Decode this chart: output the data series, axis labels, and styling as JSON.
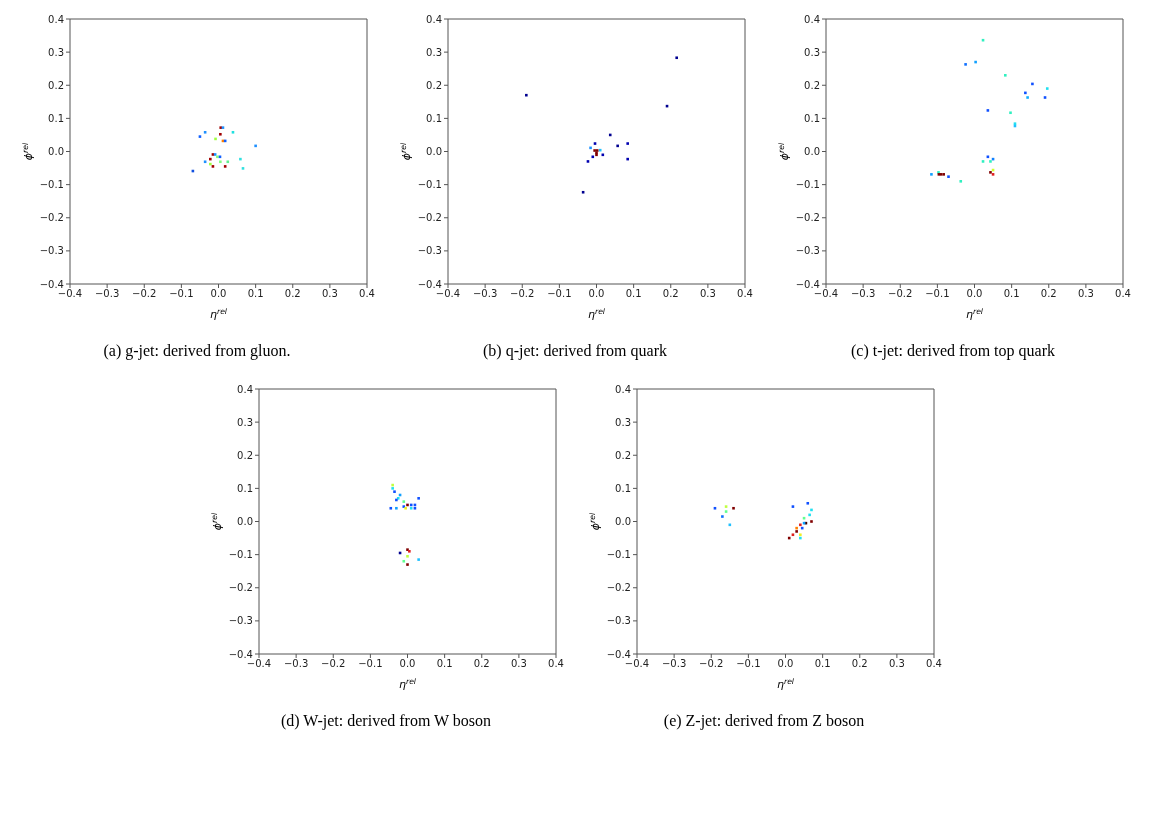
{
  "chart_data": [
    {
      "type": "scatter",
      "title": "(a) g-jet: derived from gluon.",
      "xlabel": "η$^{rel}$",
      "ylabel": "ϕ$^{rel}$",
      "marker": "square",
      "grid": false,
      "legend": false,
      "xlim": [
        -0.4,
        0.4
      ],
      "ylim": [
        -0.4,
        0.4
      ],
      "xticks": [
        {
          "value": -0.4,
          "label": "−0.4"
        },
        {
          "value": -0.3,
          "label": "−0.3"
        },
        {
          "value": -0.2,
          "label": "−0.2"
        },
        {
          "value": -0.1,
          "label": "−0.1"
        },
        {
          "value": 0,
          "label": "0.0"
        },
        0.1,
        0.2,
        0.3,
        0.4
      ],
      "yticks": [
        {
          "value": -0.4,
          "label": "−0.4"
        },
        {
          "value": -0.3,
          "label": "−0.3"
        },
        {
          "value": -0.2,
          "label": "−0.2"
        },
        {
          "value": -0.1,
          "label": "−0.1"
        },
        {
          "value": 0,
          "label": "0.0"
        },
        0.1,
        0.2,
        0.3,
        0.4
      ],
      "x": [
        0.006,
        0.012,
        -0.036,
        0.039,
        -0.05,
        0.005,
        -0.008,
        0.012,
        0.018,
        0.1,
        -0.015,
        -0.009,
        -0.003,
        0.004,
        -0.022,
        -0.036,
        0.005,
        0.025,
        0.059,
        -0.022,
        -0.015,
        0.018,
        0.066,
        -0.069
      ],
      "values": [
        0.072,
        0.072,
        0.058,
        0.058,
        0.045,
        0.052,
        0.038,
        0.032,
        0.032,
        0.017,
        -0.009,
        -0.009,
        -0.016,
        -0.016,
        -0.023,
        -0.031,
        -0.031,
        -0.031,
        -0.023,
        -0.038,
        -0.045,
        -0.045,
        -0.051,
        -0.059
      ],
      "colors": [
        "#a00000",
        "#1e90ff",
        "#1e90ff",
        "#20e0e0",
        "#1060ff",
        "#a00000",
        "#a0ff40",
        "#ff8000",
        "#1060ff",
        "#1e90ff",
        "#a00000",
        "#1e90ff",
        "#80ff80",
        "#1060ff",
        "#a00000",
        "#1e90ff",
        "#80ff80",
        "#60f090",
        "#30e0e0",
        "#a0ff40",
        "#a00000",
        "#a00000",
        "#30e0e0",
        "#1050e0"
      ]
    },
    {
      "type": "scatter",
      "title": "(b) q-jet: derived from quark",
      "xlabel": "η$^{rel}$",
      "ylabel": "ϕ$^{rel}$",
      "marker": "square",
      "grid": false,
      "legend": false,
      "xlim": [
        -0.4,
        0.4
      ],
      "ylim": [
        -0.4,
        0.4
      ],
      "xticks": [
        {
          "value": -0.4,
          "label": "−0.4"
        },
        {
          "value": -0.3,
          "label": "−0.3"
        },
        {
          "value": -0.2,
          "label": "−0.2"
        },
        {
          "value": -0.1,
          "label": "−0.1"
        },
        {
          "value": 0,
          "label": "0.0"
        },
        0.1,
        0.2,
        0.3,
        0.4
      ],
      "yticks": [
        {
          "value": -0.4,
          "label": "−0.4"
        },
        {
          "value": -0.3,
          "label": "−0.3"
        },
        {
          "value": -0.2,
          "label": "−0.2"
        },
        {
          "value": -0.1,
          "label": "−0.1"
        },
        {
          "value": 0,
          "label": "0.0"
        },
        0.1,
        0.2,
        0.3,
        0.4
      ],
      "x": [
        -0.189,
        0.216,
        0.19,
        0.037,
        -0.004,
        0.057,
        0.084,
        -0.016,
        -0.005,
        0.002,
        0.0,
        0.0,
        0.01,
        0.017,
        -0.01,
        -0.023,
        0.084,
        -0.036
      ],
      "values": [
        0.17,
        0.283,
        0.137,
        0.05,
        0.024,
        0.017,
        0.024,
        0.011,
        0.003,
        0.003,
        -0.004,
        -0.01,
        0.004,
        -0.01,
        -0.016,
        -0.03,
        -0.023,
        -0.123
      ],
      "colors": [
        "#000090",
        "#000090",
        "#000090",
        "#000090",
        "#0000b0",
        "#000090",
        "#0000b0",
        "#1e90ff",
        "#800000",
        "#800000",
        "#800000",
        "#800000",
        "#20c0ff",
        "#0000b0",
        "#0000b0",
        "#0000b0",
        "#0000b0",
        "#000090"
      ]
    },
    {
      "type": "scatter",
      "title": "(c) t-jet: derived from top quark",
      "xlabel": "η$^{rel}$",
      "ylabel": "ϕ$^{rel}$",
      "marker": "square",
      "grid": false,
      "legend": false,
      "xlim": [
        -0.4,
        0.4
      ],
      "ylim": [
        -0.4,
        0.4
      ],
      "xticks": [
        {
          "value": -0.4,
          "label": "−0.4"
        },
        {
          "value": -0.3,
          "label": "−0.3"
        },
        {
          "value": -0.2,
          "label": "−0.2"
        },
        {
          "value": -0.1,
          "label": "−0.1"
        },
        {
          "value": 0,
          "label": "0.0"
        },
        0.1,
        0.2,
        0.3,
        0.4
      ],
      "yticks": [
        {
          "value": -0.4,
          "label": "−0.4"
        },
        {
          "value": -0.3,
          "label": "−0.3"
        },
        {
          "value": -0.2,
          "label": "−0.2"
        },
        {
          "value": -0.1,
          "label": "−0.1"
        },
        {
          "value": 0,
          "label": "0.0"
        },
        0.1,
        0.2,
        0.3,
        0.4
      ],
      "x": [
        0.023,
        -0.024,
        0.003,
        0.083,
        0.156,
        0.196,
        0.137,
        0.143,
        0.19,
        0.036,
        0.097,
        0.109,
        0.109,
        0.036,
        0.05,
        0.023,
        0.043,
        0.05,
        0.043,
        0.05,
        -0.116,
        -0.097,
        -0.096,
        -0.09,
        -0.083,
        -0.07,
        -0.037
      ],
      "values": [
        0.336,
        0.263,
        0.27,
        0.23,
        0.204,
        0.19,
        0.177,
        0.163,
        0.163,
        0.124,
        0.117,
        0.084,
        0.077,
        -0.016,
        -0.023,
        -0.03,
        -0.03,
        -0.056,
        -0.063,
        -0.069,
        -0.069,
        -0.063,
        -0.069,
        -0.069,
        -0.069,
        -0.076,
        -0.09
      ],
      "colors": [
        "#30f0c0",
        "#1070ff",
        "#10a0ff",
        "#30f0c0",
        "#1050ff",
        "#20e0f0",
        "#1050ff",
        "#10b0ff",
        "#1050ff",
        "#1050ff",
        "#30f0c0",
        "#20e0f0",
        "#20c0ff",
        "#1050ff",
        "#1080ff",
        "#30f0c0",
        "#30f0c0",
        "#d0ff30",
        "#800000",
        "#e02020",
        "#10a0ff",
        "#30f0c0",
        "#800000",
        "#800000",
        "#800000",
        "#1050ff",
        "#30f0c0"
      ]
    },
    {
      "type": "scatter",
      "title": "(d) W-jet: derived from W boson",
      "xlabel": "η$^{rel}$",
      "ylabel": "ϕ$^{rel}$",
      "marker": "square",
      "grid": false,
      "legend": false,
      "xlim": [
        -0.4,
        0.4
      ],
      "ylim": [
        -0.4,
        0.4
      ],
      "xticks": [
        {
          "value": -0.4,
          "label": "−0.4"
        },
        {
          "value": -0.3,
          "label": "−0.3"
        },
        {
          "value": -0.2,
          "label": "−0.2"
        },
        {
          "value": -0.1,
          "label": "−0.1"
        },
        {
          "value": 0,
          "label": "0.0"
        },
        0.1,
        0.2,
        0.3,
        0.4
      ],
      "yticks": [
        {
          "value": -0.4,
          "label": "−0.4"
        },
        {
          "value": -0.3,
          "label": "−0.3"
        },
        {
          "value": -0.2,
          "label": "−0.2"
        },
        {
          "value": -0.1,
          "label": "−0.1"
        },
        {
          "value": 0,
          "label": "0.0"
        },
        0.1,
        0.2,
        0.3,
        0.4
      ],
      "x": [
        -0.04,
        -0.04,
        -0.035,
        -0.02,
        -0.025,
        -0.03,
        -0.01,
        0.03,
        0.0,
        0.01,
        0.02,
        -0.01,
        -0.005,
        0.01,
        0.02,
        -0.03,
        -0.045,
        -0.02,
        0.0,
        0.005,
        0.0,
        -0.01,
        0.0,
        0.03
      ],
      "values": [
        0.11,
        0.1,
        0.09,
        0.08,
        0.07,
        0.065,
        0.06,
        0.07,
        0.05,
        0.05,
        0.05,
        0.045,
        0.04,
        0.04,
        0.04,
        0.04,
        0.04,
        -0.095,
        -0.085,
        -0.09,
        -0.105,
        -0.12,
        -0.13,
        -0.115
      ],
      "colors": [
        "#c0ff40",
        "#20e0f0",
        "#1050ff",
        "#10a0ff",
        "#20e0f0",
        "#1050ff",
        "#60ff90",
        "#1050ff",
        "#800000",
        "#1050ff",
        "#1050ff",
        "#1050ff",
        "#f0f020",
        "#20e0f0",
        "#1050ff",
        "#10a0ff",
        "#1050ff",
        "#000090",
        "#800000",
        "#e02020",
        "#c0ff40",
        "#60ff90",
        "#800000",
        "#20c0ff"
      ]
    },
    {
      "type": "scatter",
      "title": "(e) Z-jet: derived from Z boson",
      "xlabel": "η$^{rel}$",
      "ylabel": "ϕ$^{rel}$",
      "marker": "square",
      "grid": false,
      "legend": false,
      "xlim": [
        -0.4,
        0.4
      ],
      "ylim": [
        -0.4,
        0.4
      ],
      "xticks": [
        {
          "value": -0.4,
          "label": "−0.4"
        },
        {
          "value": -0.3,
          "label": "−0.3"
        },
        {
          "value": -0.2,
          "label": "−0.2"
        },
        {
          "value": -0.1,
          "label": "−0.1"
        },
        {
          "value": 0,
          "label": "0.0"
        },
        0.1,
        0.2,
        0.3,
        0.4
      ],
      "yticks": [
        {
          "value": -0.4,
          "label": "−0.4"
        },
        {
          "value": -0.3,
          "label": "−0.3"
        },
        {
          "value": -0.2,
          "label": "−0.2"
        },
        {
          "value": -0.1,
          "label": "−0.1"
        },
        {
          "value": 0,
          "label": "0.0"
        },
        0.1,
        0.2,
        0.3,
        0.4
      ],
      "x": [
        -0.19,
        -0.17,
        -0.16,
        -0.16,
        -0.14,
        -0.15,
        0.02,
        0.06,
        0.07,
        0.065,
        0.05,
        0.07,
        0.055,
        0.04,
        0.045,
        0.03,
        0.03,
        0.04,
        0.02,
        0.01,
        0.04,
        0.05
      ],
      "values": [
        0.04,
        0.015,
        0.045,
        0.03,
        0.04,
        -0.01,
        0.045,
        0.055,
        0.035,
        0.02,
        0.01,
        0.0,
        -0.005,
        -0.01,
        -0.02,
        -0.02,
        -0.03,
        -0.04,
        -0.04,
        -0.05,
        -0.05,
        -0.005
      ],
      "colors": [
        "#1050ff",
        "#1070ff",
        "#c0ff40",
        "#60ff90",
        "#800000",
        "#20c0ff",
        "#1050ff",
        "#1050ff",
        "#20e0f0",
        "#20e0f0",
        "#60ff90",
        "#800000",
        "#400000",
        "#e02020",
        "#1050ff",
        "#ff8000",
        "#800000",
        "#f0f020",
        "#e02020",
        "#800000",
        "#20e0f0",
        "#10a0ff"
      ]
    }
  ]
}
